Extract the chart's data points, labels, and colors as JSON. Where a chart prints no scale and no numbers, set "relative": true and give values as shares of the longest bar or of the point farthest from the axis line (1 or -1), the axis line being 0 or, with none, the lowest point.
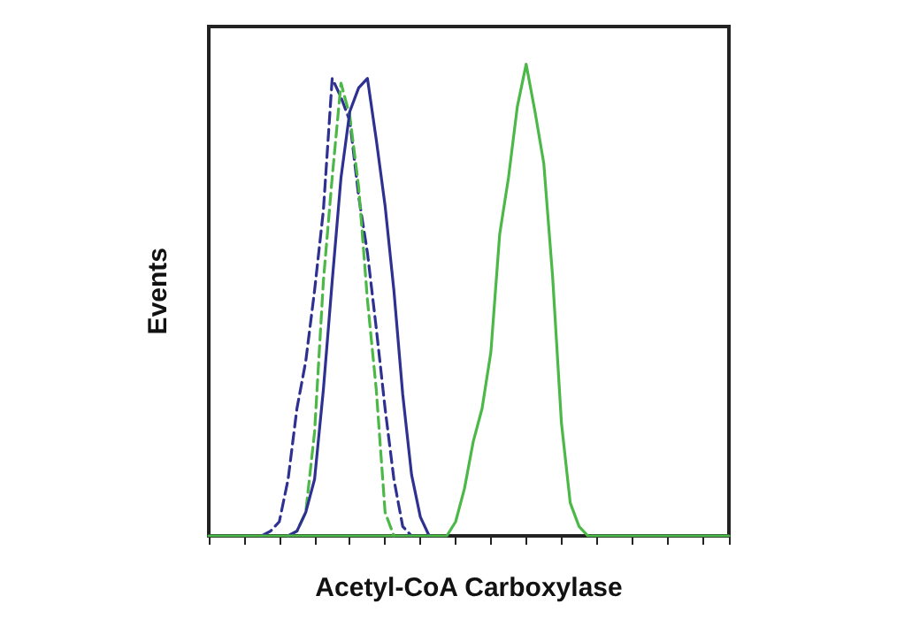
{
  "chart_data": {
    "type": "line",
    "xlabel": "Acetyl-CoA Carboxylase",
    "ylabel": "Events",
    "relative": true,
    "grid": false,
    "categories": [
      null,
      null,
      null,
      null,
      null,
      null,
      null,
      null,
      null,
      null,
      null,
      null,
      null,
      null,
      null,
      null,
      null,
      null,
      null,
      null,
      null,
      null,
      null,
      null,
      null,
      null,
      null,
      null,
      null,
      null,
      null,
      null,
      null,
      null,
      null,
      null,
      null,
      null,
      null,
      null,
      null,
      null,
      null,
      null,
      null,
      null,
      null,
      null,
      null,
      null,
      null,
      null,
      null,
      null,
      null,
      null,
      null,
      null,
      null,
      null
    ],
    "series": [
      {
        "color": "#2e3192",
        "line_style": "dashed",
        "values": [
          null,
          null,
          null,
          null,
          null,
          null,
          0,
          0.01,
          0.03,
          0.12,
          0.27,
          0.37,
          0.52,
          0.69,
          0.97,
          0.93,
          0.88,
          0.72,
          0.6,
          0.44,
          0.27,
          0.12,
          0.02,
          0,
          null,
          null,
          null,
          null,
          null,
          null,
          null,
          null,
          null,
          null,
          null,
          null,
          null,
          null,
          null,
          null,
          null,
          null,
          null,
          null,
          null,
          null,
          null,
          null,
          null,
          null,
          null,
          null,
          null,
          null,
          null,
          null,
          null,
          null,
          null,
          null
        ]
      },
      {
        "color": "#4cb848",
        "line_style": "dashed",
        "values": [
          null,
          null,
          null,
          null,
          null,
          null,
          null,
          null,
          null,
          0,
          0.01,
          0.05,
          0.22,
          0.54,
          0.76,
          0.96,
          0.89,
          0.74,
          0.5,
          0.31,
          0.05,
          0,
          null,
          null,
          null,
          null,
          null,
          null,
          null,
          null,
          null,
          null,
          null,
          null,
          null,
          null,
          null,
          null,
          null,
          null,
          null,
          null,
          null,
          null,
          null,
          null,
          null,
          null,
          null,
          null,
          null,
          null,
          null,
          null,
          null,
          null,
          null,
          null,
          null,
          null
        ]
      },
      {
        "color": "#2e3192",
        "line_style": "solid",
        "values": [
          null,
          null,
          null,
          null,
          null,
          null,
          null,
          null,
          null,
          0,
          0.01,
          0.05,
          0.12,
          0.31,
          0.54,
          0.76,
          0.9,
          0.95,
          0.97,
          0.84,
          0.7,
          0.52,
          0.3,
          0.13,
          0.04,
          0,
          null,
          null,
          null,
          null,
          null,
          null,
          null,
          null,
          null,
          null,
          null,
          null,
          null,
          null,
          null,
          null,
          null,
          null,
          null,
          null,
          null,
          null,
          null,
          null,
          null,
          null,
          null,
          null,
          null,
          null,
          null,
          null,
          null,
          null
        ]
      },
      {
        "color": "#4cb848",
        "line_style": "solid",
        "values": [
          0,
          0,
          0,
          0,
          0,
          0,
          0,
          0,
          0,
          0,
          0,
          0,
          0,
          0,
          0,
          0,
          0,
          0,
          0,
          0,
          0,
          0,
          0,
          0,
          0,
          0,
          0,
          0,
          0.03,
          0.1,
          0.2,
          0.27,
          0.39,
          0.64,
          0.76,
          0.91,
          1,
          0.9,
          0.79,
          0.55,
          0.24,
          0.07,
          0.02,
          0,
          0,
          0,
          0,
          0,
          0,
          0,
          0,
          0,
          0,
          0,
          0,
          0,
          0,
          0,
          0,
          0
        ]
      }
    ]
  }
}
